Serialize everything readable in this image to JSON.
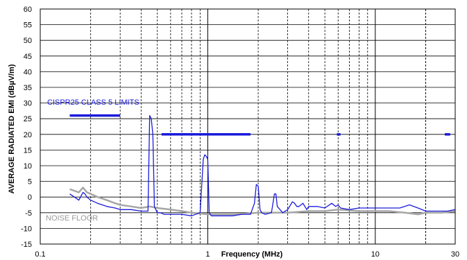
{
  "chart_data": {
    "type": "line",
    "title": "",
    "xlabel": "Frequency (MHz)",
    "ylabel": "AVERAGE RADIATED EMI (dBµV/m)",
    "xscale": "log",
    "xlim": [
      0.1,
      30
    ],
    "ylim": [
      -15,
      60
    ],
    "grid": true,
    "xticks": [
      0.1,
      1,
      10,
      30
    ],
    "xtick_labels": [
      "0.1",
      "1",
      "10",
      "30"
    ],
    "yticks": [
      60,
      55,
      50,
      45,
      40,
      35,
      30,
      25,
      20,
      15,
      10,
      5,
      0,
      -5,
      -10,
      -15
    ],
    "ytick_labels": [
      "60",
      "55",
      "50",
      "45",
      "40",
      "35",
      "30",
      "25",
      "20",
      "15",
      "10",
      "5",
      "0",
      "-5",
      "-10",
      "-15"
    ],
    "annotations": [
      {
        "text": "CISPR25 CLASS 5 LIMITS",
        "color": "#1a1adc"
      },
      {
        "text": "NOISE FLOOR",
        "color": "#999999"
      }
    ],
    "limit_segments": [
      {
        "x": [
          0.15,
          0.3
        ],
        "y": 26
      },
      {
        "x": [
          0.53,
          1.8
        ],
        "y": 20
      },
      {
        "x": [
          5.9,
          6.2
        ],
        "y": 20
      },
      {
        "x": [
          26,
          28
        ],
        "y": 20
      }
    ],
    "series": [
      {
        "color": "#1a1adc",
        "x": [
          0.15,
          0.16,
          0.17,
          0.18,
          0.185,
          0.19,
          0.2,
          0.22,
          0.25,
          0.28,
          0.3,
          0.35,
          0.4,
          0.44,
          0.45,
          0.46,
          0.47,
          0.48,
          0.49,
          0.5,
          0.52,
          0.55,
          0.6,
          0.7,
          0.8,
          0.9,
          0.94,
          0.96,
          0.98,
          1.0,
          1.02,
          1.05,
          1.1,
          1.2,
          1.4,
          1.6,
          1.8,
          1.9,
          1.95,
          2.0,
          2.05,
          2.1,
          2.2,
          2.4,
          2.5,
          2.55,
          2.6,
          2.8,
          3.0,
          3.2,
          3.3,
          3.4,
          3.5,
          3.7,
          3.9,
          4.0,
          4.5,
          5.0,
          5.5,
          5.8,
          6.0,
          6.2,
          7.0,
          8.0,
          10.0,
          12.0,
          14.0,
          16.0,
          18.0,
          20.0,
          22.0,
          25.0,
          27.0,
          30.0
        ],
        "y": [
          1,
          0,
          -1,
          1.5,
          1,
          0,
          -1,
          -2,
          -3,
          -3.5,
          -4,
          -4,
          -4.5,
          -4.5,
          26,
          25,
          20,
          -3,
          -4,
          -5,
          -5,
          -5.5,
          -5.5,
          -5.5,
          -6,
          -5,
          12,
          13.5,
          13,
          12,
          -5,
          -6,
          -6,
          -6,
          -6,
          -5.5,
          -5.5,
          -2,
          4,
          3.5,
          -4,
          -5,
          -5.5,
          -5,
          1,
          1,
          -3,
          -5,
          -4,
          -1.5,
          -2,
          -3,
          -3,
          -2,
          -4,
          -3,
          -3,
          -3.5,
          -2,
          -3,
          -2.5,
          -3.5,
          -4,
          -3.5,
          -3.5,
          -3.5,
          -3.5,
          -2.5,
          -3.5,
          -4.5,
          -4.5,
          -4.5,
          -4.5,
          -4
        ]
      },
      {
        "color": "#a6a6a6",
        "x": [
          0.15,
          0.16,
          0.17,
          0.18,
          0.19,
          0.2,
          0.22,
          0.25,
          0.28,
          0.3,
          0.35,
          0.4,
          0.45,
          0.5,
          0.6,
          0.7,
          0.8,
          1.0,
          1.2,
          1.5,
          2.0,
          3.0,
          4.0,
          5.0,
          6.0,
          8.0,
          10.0,
          12.0,
          15.0,
          18.0,
          20.0,
          25.0,
          30.0
        ],
        "y": [
          2.5,
          2,
          1.5,
          3,
          1.5,
          1,
          0,
          -1,
          -2,
          -2.5,
          -3,
          -3.5,
          -3,
          -3.5,
          -4,
          -4.5,
          -5,
          -5.5,
          -5.5,
          -5.5,
          -5,
          -5,
          -4.5,
          -4.5,
          -4,
          -4.5,
          -4.5,
          -4.5,
          -5,
          -5.5,
          -5,
          -5,
          -4.5
        ]
      }
    ]
  }
}
